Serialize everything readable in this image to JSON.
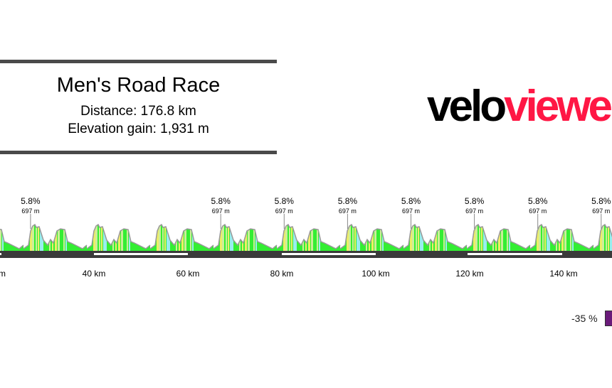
{
  "header": {
    "title": "Men's Road Race",
    "distance": "Distance: 176.8 km",
    "elevation_gain": "Elevation gain: 1,931 m"
  },
  "logo": {
    "part1": "velo",
    "part2": "viewer",
    "color1": "#000000",
    "color2": "#ff1744"
  },
  "chart_data": {
    "type": "area",
    "title": "",
    "xlabel": "",
    "ylabel": "",
    "x_unit": "km",
    "x_ticks": [
      {
        "km": 20,
        "label": "km"
      },
      {
        "km": 40,
        "label": "40 km"
      },
      {
        "km": 60,
        "label": "60 km"
      },
      {
        "km": 80,
        "label": "80 km"
      },
      {
        "km": 100,
        "label": "100 km"
      },
      {
        "km": 120,
        "label": "120 km"
      },
      {
        "km": 140,
        "label": "140 km"
      }
    ],
    "climb_labels": [
      {
        "km": 26.5,
        "gradient": "5.8%",
        "elevation": "697 m"
      },
      {
        "km": 67,
        "gradient": "5.8%",
        "elevation": "697 m"
      },
      {
        "km": 80.5,
        "gradient": "5.8%",
        "elevation": "697 m"
      },
      {
        "km": 94,
        "gradient": "5.8%",
        "elevation": "697 m"
      },
      {
        "km": 107.5,
        "gradient": "5.8%",
        "elevation": "697 m"
      },
      {
        "km": 121,
        "gradient": "5.8%",
        "elevation": "697 m"
      },
      {
        "km": 134.5,
        "gradient": "5.8%",
        "elevation": "697 m"
      },
      {
        "km": 148,
        "gradient": "5.8%",
        "elevation": "697 m"
      }
    ],
    "gradient_colors": {
      "flat": "#33ee33",
      "mild": "#ccee99",
      "moderate": "#eeee66",
      "descent": "#99eeee"
    },
    "legend": {
      "label": "-35 %",
      "color": "#6a1b7a"
    }
  }
}
